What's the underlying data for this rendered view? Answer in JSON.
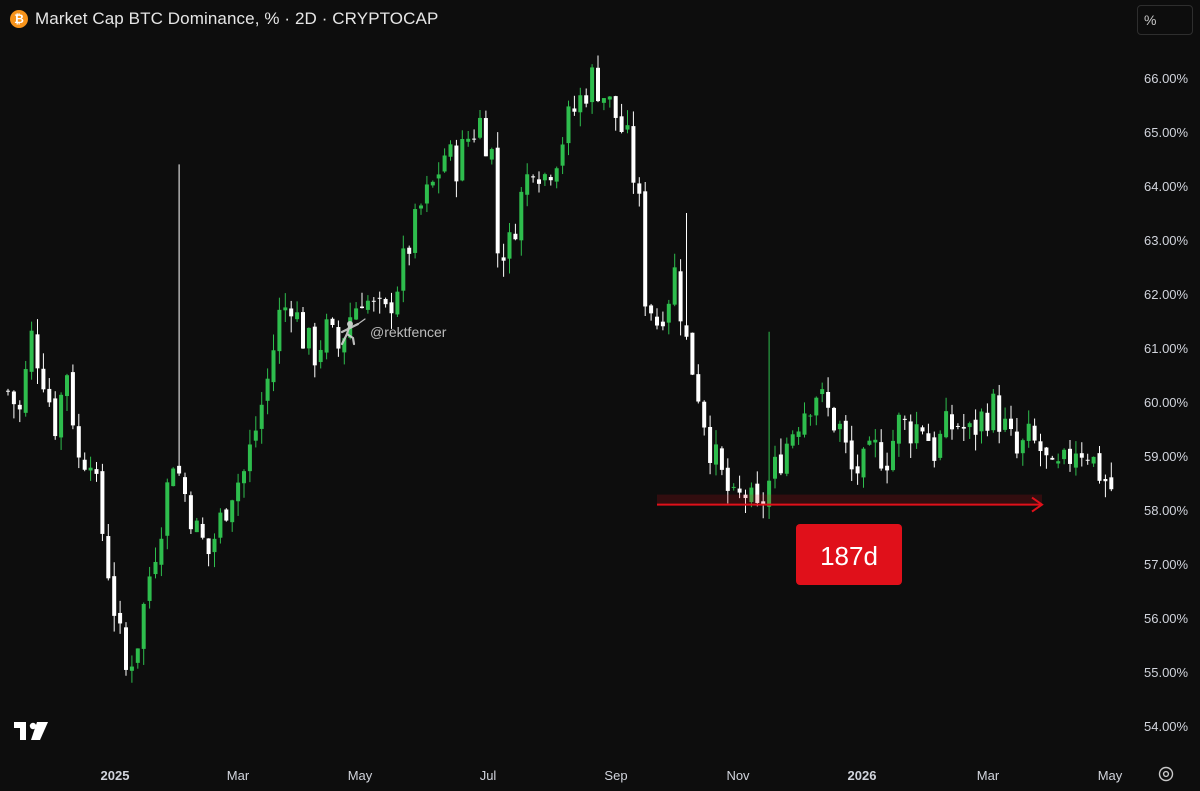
{
  "header": {
    "title": "Market Cap BTC Dominance, % · 2D · CRYPTOCAP",
    "icon": "bitcoin-icon"
  },
  "unit_button": "%",
  "watermark": "@rektfencer",
  "colors": {
    "up": "#2ebd4d",
    "down": "#ffffff",
    "annotation": "#e0101a",
    "background": "#0d0d0d"
  },
  "chart_data": {
    "type": "candlestick",
    "timeframe": "2D",
    "ylim": [
      53.6,
      67.4
    ],
    "y_ticks": [
      "54.00%",
      "55.00%",
      "56.00%",
      "57.00%",
      "58.00%",
      "59.00%",
      "60.00%",
      "61.00%",
      "62.00%",
      "63.00%",
      "64.00%",
      "65.00%",
      "66.00%"
    ],
    "x_ticks": [
      "2025",
      "Mar",
      "May",
      "Jul",
      "Sep",
      "Nov",
      "2026",
      "Mar",
      "May"
    ],
    "close_path": [
      [
        0,
        60.2
      ],
      [
        4,
        59.8
      ],
      [
        8,
        61.2
      ],
      [
        12,
        60.5
      ],
      [
        16,
        59.6
      ],
      [
        20,
        60.6
      ],
      [
        24,
        58.9
      ],
      [
        28,
        59.1
      ],
      [
        32,
        57.6
      ],
      [
        36,
        56.2
      ],
      [
        40,
        55.0
      ],
      [
        44,
        55.6
      ],
      [
        48,
        56.8
      ],
      [
        52,
        57.8
      ],
      [
        56,
        59.0
      ],
      [
        60,
        58.3
      ],
      [
        64,
        57.6
      ],
      [
        68,
        57.2
      ],
      [
        72,
        57.8
      ],
      [
        76,
        58.4
      ],
      [
        80,
        58.7
      ],
      [
        84,
        59.5
      ],
      [
        88,
        60.4
      ],
      [
        92,
        61.6
      ],
      [
        96,
        61.9
      ],
      [
        100,
        61.2
      ],
      [
        104,
        60.9
      ],
      [
        108,
        61.3
      ],
      [
        112,
        61.0
      ],
      [
        116,
        61.6
      ],
      [
        120,
        62.0
      ],
      [
        124,
        61.7
      ],
      [
        128,
        61.6
      ],
      [
        132,
        62.2
      ],
      [
        136,
        62.9
      ],
      [
        140,
        63.6
      ],
      [
        144,
        64.0
      ],
      [
        148,
        64.6
      ],
      [
        152,
        64.4
      ],
      [
        156,
        64.9
      ],
      [
        160,
        65.2
      ],
      [
        164,
        64.6
      ],
      [
        166,
        62.8
      ],
      [
        170,
        62.9
      ],
      [
        174,
        63.8
      ],
      [
        178,
        64.5
      ],
      [
        182,
        64.2
      ],
      [
        186,
        64.6
      ],
      [
        190,
        65.2
      ],
      [
        194,
        65.6
      ],
      [
        198,
        66.0
      ],
      [
        202,
        65.7
      ],
      [
        206,
        65.3
      ],
      [
        210,
        64.8
      ],
      [
        214,
        63.6
      ],
      [
        216,
        62.0
      ],
      [
        220,
        61.5
      ],
      [
        224,
        62.0
      ],
      [
        226,
        62.4
      ],
      [
        230,
        61.1
      ],
      [
        234,
        60.2
      ],
      [
        238,
        59.2
      ],
      [
        242,
        58.6
      ],
      [
        246,
        58.1
      ],
      [
        250,
        58.3
      ],
      [
        254,
        57.9
      ],
      [
        258,
        58.5
      ],
      [
        262,
        59.0
      ],
      [
        266,
        59.5
      ],
      [
        270,
        59.9
      ],
      [
        274,
        60.2
      ],
      [
        278,
        59.8
      ],
      [
        282,
        59.5
      ],
      [
        286,
        58.7
      ],
      [
        290,
        58.8
      ],
      [
        294,
        59.1
      ],
      [
        298,
        59.0
      ],
      [
        302,
        59.6
      ],
      [
        306,
        59.5
      ],
      [
        310,
        59.6
      ],
      [
        314,
        59.1
      ],
      [
        318,
        59.5
      ],
      [
        322,
        59.6
      ],
      [
        326,
        59.4
      ],
      [
        330,
        59.7
      ],
      [
        334,
        59.9
      ],
      [
        338,
        59.5
      ],
      [
        342,
        59.0
      ],
      [
        346,
        59.3
      ],
      [
        350,
        59.1
      ],
      [
        354,
        58.6
      ],
      [
        358,
        58.8
      ],
      [
        362,
        59.2
      ],
      [
        366,
        59.1
      ],
      [
        370,
        58.7
      ],
      [
        374,
        58.4
      ]
    ],
    "annotation": {
      "label": "187d",
      "start_level": 58.1,
      "duration_days": 187
    }
  }
}
